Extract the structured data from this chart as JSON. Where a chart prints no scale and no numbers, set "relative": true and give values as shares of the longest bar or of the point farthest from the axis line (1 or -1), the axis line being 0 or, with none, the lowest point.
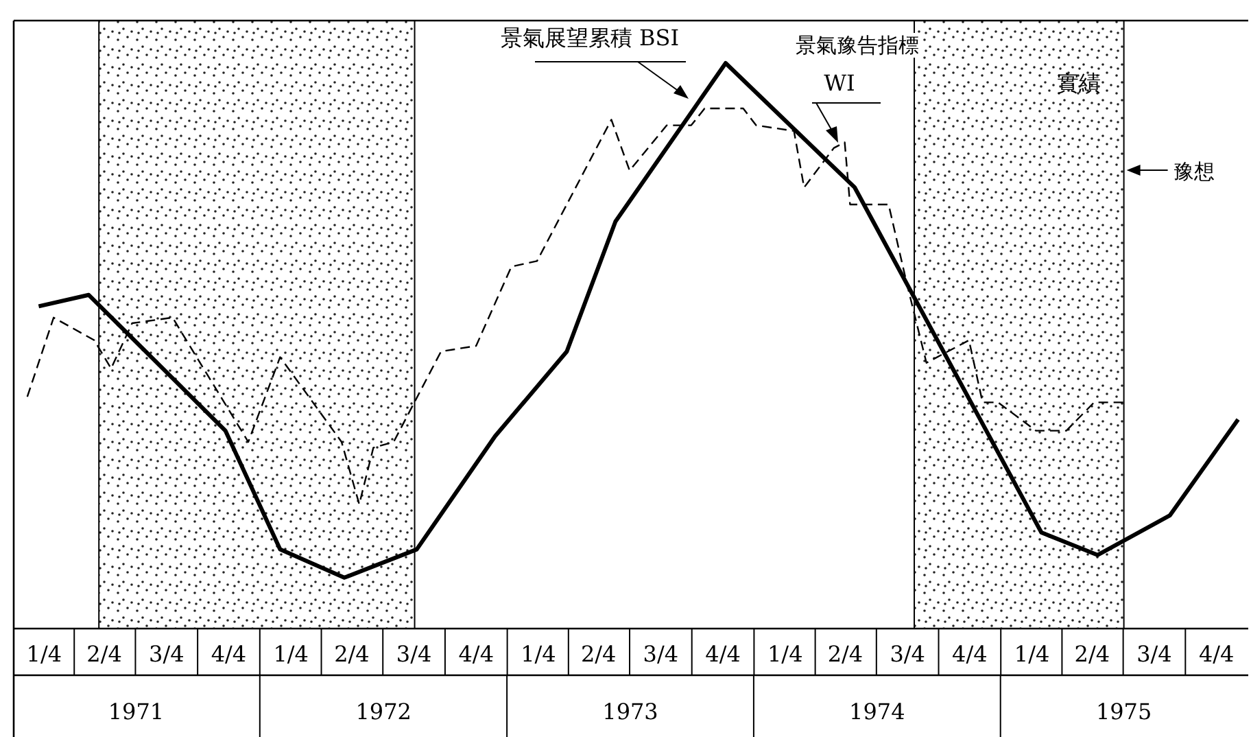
{
  "chart_data": {
    "type": "line",
    "relative": true,
    "xlim": [
      "1971-01-01",
      "1976-01-01"
    ],
    "xticks": [
      {
        "value": "1971-02-15",
        "label": "1/4"
      },
      {
        "value": "1971-05-15",
        "label": "2/4"
      },
      {
        "value": "1971-08-15",
        "label": "3/4"
      },
      {
        "value": "1971-11-15",
        "label": "4/4"
      },
      {
        "value": "1972-02-15",
        "label": "1/4"
      },
      {
        "value": "1972-05-15",
        "label": "2/4"
      },
      {
        "value": "1972-08-15",
        "label": "3/4"
      },
      {
        "value": "1972-11-15",
        "label": "4/4"
      },
      {
        "value": "1973-02-15",
        "label": "1/4"
      },
      {
        "value": "1973-05-15",
        "label": "2/4"
      },
      {
        "value": "1973-08-15",
        "label": "3/4"
      },
      {
        "value": "1973-11-15",
        "label": "4/4"
      },
      {
        "value": "1974-02-15",
        "label": "1/4"
      },
      {
        "value": "1974-05-15",
        "label": "2/4"
      },
      {
        "value": "1974-08-15",
        "label": "3/4"
      },
      {
        "value": "1974-11-15",
        "label": "4/4"
      },
      {
        "value": "1975-02-15",
        "label": "1/4"
      },
      {
        "value": "1975-05-15",
        "label": "2/4"
      },
      {
        "value": "1975-08-15",
        "label": "3/4"
      },
      {
        "value": "1975-11-15",
        "label": "4/4"
      }
    ],
    "x2lim": [
      "1971-01-01",
      "1976-01-01"
    ],
    "x2ticks": [
      {
        "value": "1971-07-01",
        "label": "1971"
      },
      {
        "value": "1972-07-01",
        "label": "1972"
      },
      {
        "value": "1973-07-01",
        "label": "1973"
      },
      {
        "value": "1974-07-01",
        "label": "1974"
      },
      {
        "value": "1975-07-01",
        "label": "1975"
      }
    ],
    "series": [
      {
        "name": "景氣展望累積 BSI",
        "color": "#000000",
        "line_style": "solid",
        "x": [
          "1971-02-07",
          "1971-04-22",
          "1971-11-10",
          "1972-01-30",
          "1972-05-04",
          "1972-08-19",
          "1972-12-13",
          "1973-03-29",
          "1973-06-09",
          "1973-11-19",
          "1974-05-29",
          "1975-03-01",
          "1975-05-23",
          "1975-09-07",
          "1975-12-17"
        ],
        "values": [
          0.57,
          0.59,
          0.35,
          0.14,
          0.09,
          0.14,
          0.34,
          0.49,
          0.72,
          1.0,
          0.78,
          0.17,
          0.13,
          0.2,
          0.37
        ]
      },
      {
        "name": "景氣豫告指標 WI",
        "color": "#000000",
        "line_style": "dashed",
        "x": [
          "1971-01-21",
          "1971-03-01",
          "1971-04-30",
          "1971-05-25",
          "1971-06-25",
          "1971-08-24",
          "1971-12-14",
          "1972-01-30",
          "1972-04-30",
          "1972-05-26",
          "1972-06-16",
          "1972-07-16",
          "1972-09-24",
          "1972-11-15",
          "1973-01-06",
          "1973-02-13",
          "1973-06-03",
          "1973-06-30",
          "1973-08-24",
          "1973-09-29",
          "1973-10-19",
          "1973-12-15",
          "1974-01-03",
          "1974-02-28",
          "1974-03-15",
          "1974-04-28",
          "1974-05-14",
          "1974-05-22",
          "1974-07-18",
          "1974-08-14",
          "1974-09-12",
          "1974-11-14",
          "1974-12-04",
          "1974-12-27",
          "1975-02-21",
          "1975-04-07",
          "1975-05-18",
          "1975-07-07"
        ],
        "values": [
          0.41,
          0.55,
          0.51,
          0.46,
          0.54,
          0.55,
          0.33,
          0.48,
          0.33,
          0.22,
          0.32,
          0.33,
          0.49,
          0.5,
          0.64,
          0.65,
          0.9,
          0.81,
          0.89,
          0.89,
          0.92,
          0.92,
          0.89,
          0.88,
          0.78,
          0.85,
          0.86,
          0.75,
          0.75,
          0.61,
          0.47,
          0.51,
          0.4,
          0.4,
          0.35,
          0.35,
          0.4,
          0.4
        ]
      }
    ],
    "bands": [
      {
        "axis": "x",
        "from": "1971-05-07",
        "to": "1972-08-16"
      },
      {
        "axis": "x",
        "from": "1974-08-25",
        "to": "1975-07-01"
      }
    ],
    "annotations": [
      "實績",
      "豫想"
    ]
  }
}
